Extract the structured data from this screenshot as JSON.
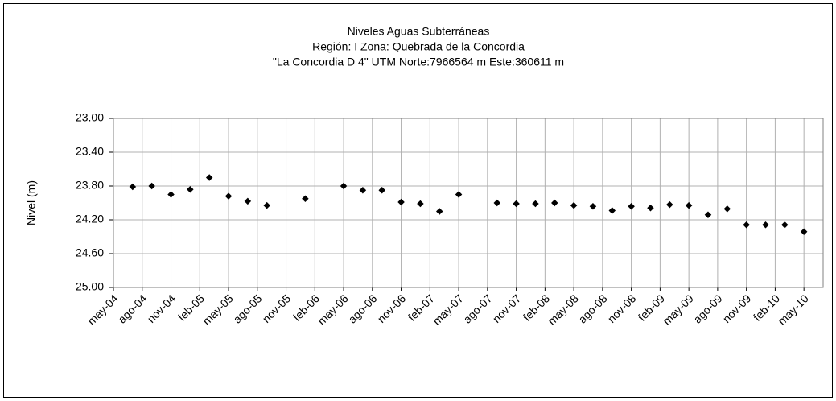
{
  "chart_data": {
    "type": "scatter",
    "title": [
      "Niveles Aguas Subterráneas",
      "Región: I  Zona: Quebrada de la Concordia",
      "\"La Concordia D 4\"  UTM Norte:7966564 m   Este:360611 m"
    ],
    "y_label": "Nivel (m)",
    "color": "#000000",
    "grid": true,
    "y_inverted": true,
    "ylim": [
      23,
      25
    ],
    "yticks": [
      {
        "value": 23,
        "label": "23.00"
      },
      {
        "value": 23.4,
        "label": "23.40"
      },
      {
        "value": 23.8,
        "label": "23.80"
      },
      {
        "value": 24.2,
        "label": "24.20"
      },
      {
        "value": 24.6,
        "label": "24.60"
      },
      {
        "value": 25,
        "label": "25.00"
      }
    ],
    "xlim": [
      "may-04",
      "jul-10"
    ],
    "xticks": [
      "may-04",
      "ago-04",
      "nov-04",
      "feb-05",
      "may-05",
      "ago-05",
      "nov-05",
      "feb-06",
      "may-06",
      "ago-06",
      "nov-06",
      "feb-07",
      "may-07",
      "ago-07",
      "nov-07",
      "feb-08",
      "may-08",
      "ago-08",
      "nov-08",
      "feb-09",
      "may-09",
      "ago-09",
      "nov-09",
      "feb-10",
      "may-10"
    ],
    "x": [
      "jul-04",
      "sep-04",
      "nov-04",
      "ene-05",
      "mar-05",
      "may-05",
      "jul-05",
      "sep-05",
      "ene-06",
      "may-06",
      "jul-06",
      "sep-06",
      "nov-06",
      "ene-07",
      "mar-07",
      "may-07",
      "sep-07",
      "nov-07",
      "ene-08",
      "mar-08",
      "may-08",
      "jul-08",
      "sep-08",
      "nov-08",
      "ene-09",
      "mar-09",
      "may-09",
      "jul-09",
      "sep-09",
      "nov-09",
      "ene-10",
      "mar-10",
      "may-10"
    ],
    "values": [
      23.81,
      23.8,
      23.9,
      23.84,
      23.7,
      23.92,
      23.98,
      24.03,
      23.95,
      23.8,
      23.85,
      23.85,
      23.99,
      24.01,
      24.1,
      23.9,
      24.0,
      24.01,
      24.01,
      24.0,
      24.03,
      24.04,
      24.09,
      24.04,
      24.06,
      24.02,
      24.03,
      24.14,
      24.07,
      24.26,
      24.26,
      24.26,
      24.34
    ]
  }
}
